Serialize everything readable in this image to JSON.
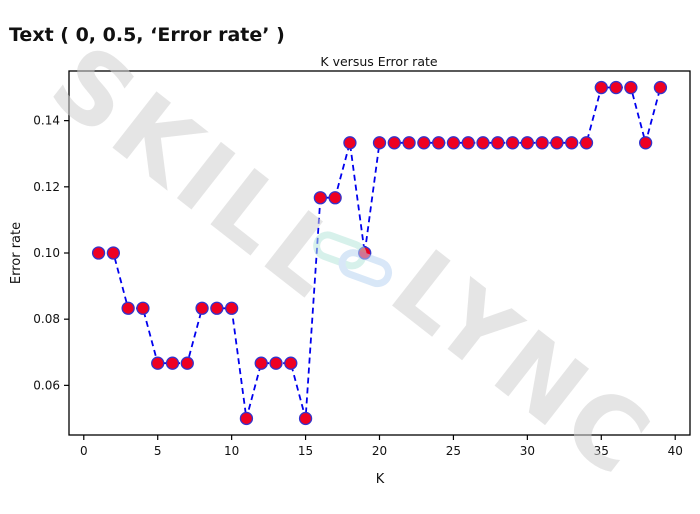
{
  "header_text": "Text ( 0, 0.5, ‘Error rate’ )",
  "watermark": {
    "text": "SKILL LYNC",
    "color": "#cfcfcf"
  },
  "chart_data": {
    "type": "line",
    "title": "K versus Error rate",
    "xlabel": "K",
    "ylabel": "Error rate",
    "xlim": [
      -1,
      41
    ],
    "ylim": [
      0.045,
      0.155
    ],
    "xticks": [
      0,
      5,
      10,
      15,
      20,
      25,
      30,
      35,
      40
    ],
    "yticks": [
      0.06,
      0.08,
      0.1,
      0.12,
      0.14
    ],
    "ytick_labels": [
      "0.06",
      "0.08",
      "0.10",
      "0.12",
      "0.14"
    ],
    "grid": false,
    "line_color": "#0000ee",
    "line_style": "dashed",
    "marker_face": "#ee0022",
    "marker_edge": "#3333cc",
    "x": [
      1,
      2,
      3,
      4,
      5,
      6,
      7,
      8,
      9,
      10,
      11,
      12,
      13,
      14,
      15,
      16,
      17,
      18,
      19,
      20,
      21,
      22,
      23,
      24,
      25,
      26,
      27,
      28,
      29,
      30,
      31,
      32,
      33,
      34,
      35,
      36,
      37,
      38,
      39
    ],
    "values": [
      0.1,
      0.1,
      0.0833,
      0.0833,
      0.0667,
      0.0667,
      0.0667,
      0.0833,
      0.0833,
      0.0833,
      0.05,
      0.0667,
      0.0667,
      0.0667,
      0.05,
      0.1167,
      0.1167,
      0.1333,
      0.1,
      0.1333,
      0.1333,
      0.1333,
      0.1333,
      0.1333,
      0.1333,
      0.1333,
      0.1333,
      0.1333,
      0.1333,
      0.1333,
      0.1333,
      0.1333,
      0.1333,
      0.1333,
      0.15,
      0.15,
      0.15,
      0.1333,
      0.15
    ]
  }
}
